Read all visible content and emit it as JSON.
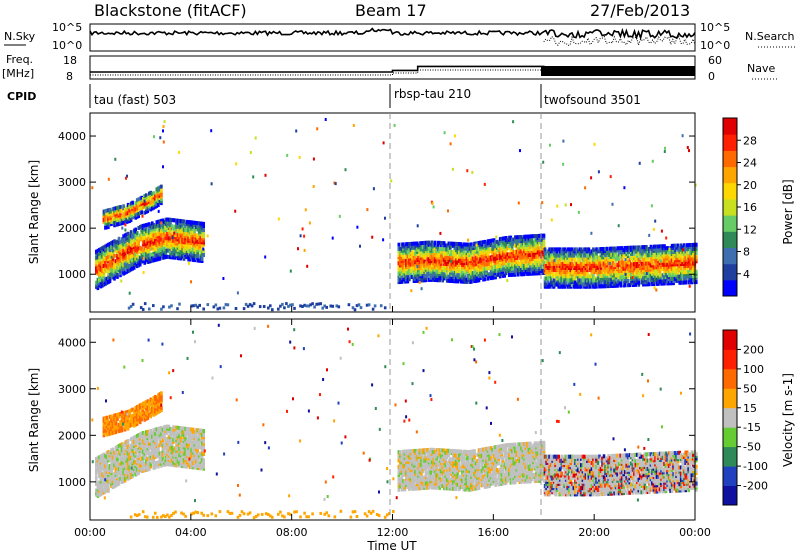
{
  "header": {
    "station": "Blackstone (fitACF)",
    "beam": "Beam 17",
    "date": "27/Feb/2013"
  },
  "noise_panel": {
    "left_label": "N.Sky",
    "right_label": "N.Search",
    "left_ticks": [
      "10^5",
      "10^0"
    ],
    "right_ticks": [
      "10^5",
      "10^0"
    ]
  },
  "freq_panel": {
    "left_label_1": "Freq.",
    "left_label_2": "[MHz]",
    "left_ticks": [
      "18",
      "8"
    ],
    "right_label": "Nave",
    "right_ticks": [
      "60",
      "0"
    ]
  },
  "cpid": {
    "label": "CPID",
    "segments": [
      {
        "name": "tau (fast) 503",
        "start_hour": 0,
        "end_hour": 12
      },
      {
        "name": "rbsp-tau 210",
        "start_hour": 12,
        "end_hour": 18
      },
      {
        "name": "twofsound 3501",
        "start_hour": 18,
        "end_hour": 24
      }
    ]
  },
  "power_panel": {
    "ylabel": "Slant Range [km]",
    "yticks": [
      "4000",
      "3000",
      "2000",
      "1000"
    ],
    "colorbar_label": "Power [dB]",
    "colorbar_ticks": [
      "28",
      "24",
      "20",
      "16",
      "12",
      "8",
      "4"
    ],
    "colors": [
      "#0000ff",
      "#1f3fa0",
      "#3d6fb0",
      "#2e8b57",
      "#66cd66",
      "#c8e020",
      "#ffd700",
      "#ffa500",
      "#ff6a00",
      "#ff2000",
      "#e00000"
    ]
  },
  "velocity_panel": {
    "ylabel": "Slant Range [km]",
    "yticks": [
      "4000",
      "3000",
      "2000",
      "1000"
    ],
    "colorbar_label": "Velocity [m s-1]",
    "colorbar_ticks": [
      "200",
      "100",
      "50",
      "15",
      "-15",
      "-50",
      "-100",
      "-200"
    ],
    "colors": [
      "#1010a0",
      "#2040c0",
      "#2e8b57",
      "#66cc33",
      "#c0c0c0",
      "#ffa500",
      "#ff6a00",
      "#ff2000",
      "#e00000"
    ]
  },
  "x_axis": {
    "label": "Time UT",
    "ticks": [
      "00:00",
      "04:00",
      "08:00",
      "12:00",
      "16:00",
      "20:00",
      "00:00"
    ]
  },
  "chart_data": {
    "type": "heatmap",
    "title": "Blackstone (fitACF)",
    "xlabel": "Time UT",
    "ylabel": "Slant Range [km]",
    "xlim": [
      0,
      24
    ],
    "ylim": [
      180,
      4500
    ],
    "frequency_mhz": [
      {
        "start_hour": 0,
        "end_hour": 12,
        "value": 10.5
      },
      {
        "start_hour": 12,
        "end_hour": 13,
        "value": 11.5
      },
      {
        "start_hour": 13,
        "end_hour": 18,
        "value": 14
      }
    ],
    "echo_bands": [
      {
        "hours": [
          0.2,
          1.0,
          2.0,
          3.0,
          4.5
        ],
        "range_km": [
          1100,
          1350,
          1650,
          1800,
          1700
        ]
      },
      {
        "hours": [
          0.5,
          1.5,
          2.5,
          2.8
        ],
        "range_km": [
          2200,
          2350,
          2650,
          2750
        ]
      },
      {
        "hours": [
          12.2,
          13.5,
          15.0,
          16.5,
          18.0
        ],
        "range_km": [
          1250,
          1300,
          1250,
          1400,
          1450
        ]
      },
      {
        "hours": [
          18.0,
          20.0,
          22.0,
          24.0
        ],
        "range_km": [
          1150,
          1150,
          1200,
          1250
        ]
      }
    ]
  }
}
